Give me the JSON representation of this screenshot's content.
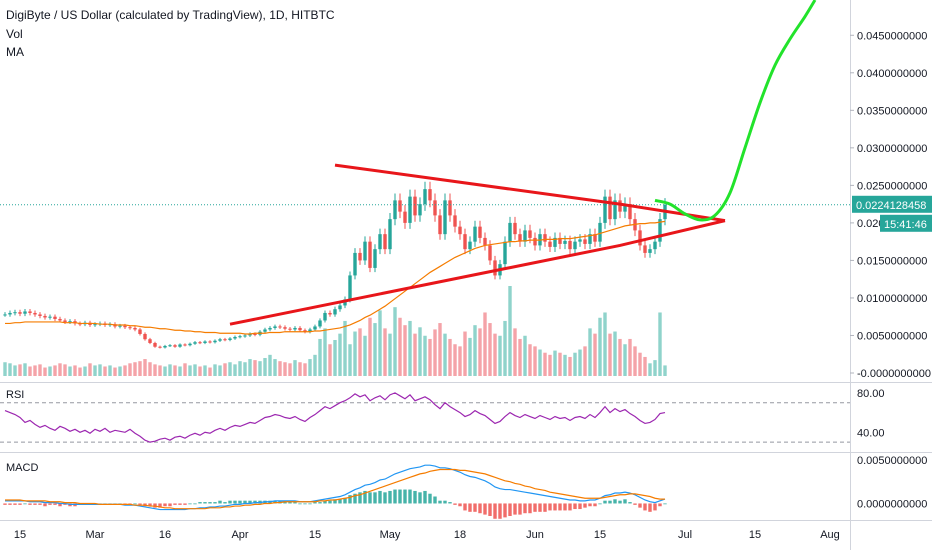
{
  "legend": {
    "title": "DigiByte / US Dollar (calculated by TradingView), 1D, HITBTC",
    "vol": "Vol",
    "ma": "MA"
  },
  "colors": {
    "up": "#26a69a",
    "down": "#ef5350",
    "vol_up": "#8fd3cb",
    "vol_down": "#f4a3a8",
    "ma": "#f57c00",
    "triangle": "#e8161a",
    "projection": "#22e32b",
    "rsi": "#9c27b0",
    "macd": "#2196f3",
    "signal": "#f57c00",
    "price_tag": "#26a69a"
  },
  "price_tag": {
    "value": "0.0224128458",
    "countdown": "15:41:46"
  },
  "chart_data": [
    {
      "type": "candlestick",
      "pane": "price",
      "title": "DigiByte / US Dollar (calculated by TradingView), 1D, HITBTC",
      "x_ticks": [
        "15",
        "Mar",
        "16",
        "Apr",
        "15",
        "May",
        "18",
        "Jun",
        "15",
        "Jul",
        "15",
        "Aug"
      ],
      "y_ticks": [
        "0.0450000000",
        "0.0400000000",
        "0.0350000000",
        "0.0300000000",
        "0.0250000000",
        "0.020",
        "0.0150000000",
        "0.0100000000",
        "0.0050000000",
        "-0.0000000000"
      ],
      "ylim": [
        -0.0012,
        0.0497
      ],
      "close": [
        0.0078,
        0.008,
        0.0081,
        0.0079,
        0.0082,
        0.008,
        0.0078,
        0.0076,
        0.0074,
        0.0075,
        0.0072,
        0.007,
        0.0068,
        0.0069,
        0.0066,
        0.0065,
        0.0067,
        0.0064,
        0.0065,
        0.0066,
        0.0064,
        0.0065,
        0.0062,
        0.0063,
        0.0061,
        0.006,
        0.0058,
        0.0052,
        0.0045,
        0.004,
        0.0035,
        0.0034,
        0.0036,
        0.0037,
        0.0035,
        0.0038,
        0.0037,
        0.0039,
        0.0041,
        0.004,
        0.0042,
        0.0041,
        0.0043,
        0.0045,
        0.0044,
        0.0046,
        0.0048,
        0.0049,
        0.005,
        0.0052,
        0.0051,
        0.0055,
        0.0058,
        0.006,
        0.0062,
        0.0061,
        0.0059,
        0.0058,
        0.006,
        0.0057,
        0.0055,
        0.0058,
        0.0062,
        0.007,
        0.008,
        0.0078,
        0.0085,
        0.009,
        0.0098,
        0.013,
        0.016,
        0.015,
        0.0175,
        0.014,
        0.0165,
        0.0185,
        0.0165,
        0.0205,
        0.023,
        0.0215,
        0.02,
        0.0235,
        0.021,
        0.0225,
        0.0245,
        0.023,
        0.021,
        0.0185,
        0.023,
        0.021,
        0.0195,
        0.0185,
        0.0165,
        0.0175,
        0.0195,
        0.018,
        0.017,
        0.015,
        0.013,
        0.0145,
        0.0175,
        0.02,
        0.0185,
        0.0175,
        0.019,
        0.018,
        0.017,
        0.0185,
        0.0175,
        0.0168,
        0.018,
        0.0172,
        0.0176,
        0.0165,
        0.0175,
        0.0178,
        0.0172,
        0.0185,
        0.0175,
        0.02,
        0.0235,
        0.0205,
        0.023,
        0.0215,
        0.0225,
        0.0205,
        0.019,
        0.017,
        0.016,
        0.0165,
        0.0175,
        0.0205,
        0.0224
      ],
      "ma": [
        0.0066,
        0.0066,
        0.0067,
        0.0067,
        0.0068,
        0.0068,
        0.0068,
        0.0068,
        0.0068,
        0.0068,
        0.0068,
        0.0068,
        0.0067,
        0.0067,
        0.0067,
        0.0066,
        0.0066,
        0.0066,
        0.0066,
        0.0065,
        0.0065,
        0.0065,
        0.0064,
        0.0064,
        0.0064,
        0.0063,
        0.0063,
        0.0062,
        0.0061,
        0.0061,
        0.006,
        0.0059,
        0.0059,
        0.0058,
        0.0057,
        0.0057,
        0.0056,
        0.0056,
        0.0055,
        0.0055,
        0.0054,
        0.0054,
        0.0054,
        0.0053,
        0.0053,
        0.0053,
        0.0053,
        0.0053,
        0.0052,
        0.0052,
        0.0053,
        0.0053,
        0.0053,
        0.0054,
        0.0054,
        0.0054,
        0.0055,
        0.0055,
        0.0055,
        0.0055,
        0.0055,
        0.0055,
        0.0056,
        0.0056,
        0.0057,
        0.0058,
        0.0059,
        0.006,
        0.0062,
        0.0064,
        0.0067,
        0.007,
        0.0074,
        0.0077,
        0.0081,
        0.0085,
        0.0089,
        0.0094,
        0.0099,
        0.0104,
        0.0109,
        0.0114,
        0.0119,
        0.0124,
        0.0129,
        0.0134,
        0.0138,
        0.0142,
        0.0146,
        0.015,
        0.0154,
        0.0157,
        0.016,
        0.0163,
        0.0166,
        0.0168,
        0.017,
        0.0171,
        0.0172,
        0.0173,
        0.0174,
        0.0175,
        0.0175,
        0.0176,
        0.0176,
        0.0177,
        0.0177,
        0.0177,
        0.0178,
        0.0178,
        0.0178,
        0.0179,
        0.0179,
        0.0179,
        0.018,
        0.0181,
        0.0182,
        0.0183,
        0.0184,
        0.0186,
        0.0188,
        0.019,
        0.0192,
        0.0194,
        0.0196,
        0.0197,
        0.0198,
        0.0199,
        0.0199,
        0.02,
        0.02,
        0.0201,
        0.0202
      ],
      "volume": [
        0.0013,
        0.0012,
        0.001,
        0.0011,
        0.0012,
        0.0009,
        0.001,
        0.0011,
        0.0008,
        0.0009,
        0.001,
        0.0012,
        0.0011,
        0.0009,
        0.001,
        0.0008,
        0.0009,
        0.0012,
        0.001,
        0.0011,
        0.0009,
        0.001,
        0.0008,
        0.0009,
        0.001,
        0.0012,
        0.0013,
        0.0014,
        0.0016,
        0.0013,
        0.0011,
        0.001,
        0.0009,
        0.0011,
        0.001,
        0.0009,
        0.0012,
        0.001,
        0.0011,
        0.0009,
        0.001,
        0.0008,
        0.0011,
        0.001,
        0.0012,
        0.0013,
        0.0011,
        0.0014,
        0.0013,
        0.0016,
        0.0015,
        0.0014,
        0.0017,
        0.002,
        0.0016,
        0.0014,
        0.0013,
        0.0012,
        0.0015,
        0.0013,
        0.0012,
        0.0016,
        0.002,
        0.0035,
        0.0045,
        0.003,
        0.0034,
        0.004,
        0.0052,
        0.003,
        0.0042,
        0.0045,
        0.0038,
        0.0055,
        0.005,
        0.0062,
        0.0045,
        0.004,
        0.0065,
        0.0055,
        0.0048,
        0.0052,
        0.004,
        0.0046,
        0.0038,
        0.0035,
        0.0044,
        0.005,
        0.004,
        0.0035,
        0.003,
        0.0028,
        0.0042,
        0.0036,
        0.0048,
        0.0045,
        0.006,
        0.005,
        0.004,
        0.0038,
        0.0052,
        0.0085,
        0.0045,
        0.0035,
        0.0038,
        0.003,
        0.0028,
        0.0025,
        0.0022,
        0.002,
        0.0024,
        0.0022,
        0.002,
        0.0018,
        0.0022,
        0.0025,
        0.0028,
        0.0045,
        0.004,
        0.0055,
        0.006,
        0.004,
        0.0042,
        0.0035,
        0.003,
        0.0035,
        0.0028,
        0.0022,
        0.0018,
        0.0012,
        0.0015,
        0.006,
        0.001
      ],
      "triangle": {
        "upper": [
          [
            66,
            0.0277
          ],
          [
            123,
            0.0225
          ],
          [
            144,
            0.0203
          ]
        ],
        "lower": [
          [
            45,
            0.0065
          ],
          [
            123,
            0.017
          ],
          [
            144,
            0.0203
          ]
        ]
      },
      "projection": [
        [
          130,
          0.023
        ],
        [
          133,
          0.0225
        ],
        [
          136,
          0.0212
        ],
        [
          139,
          0.0204
        ],
        [
          142,
          0.021
        ],
        [
          145,
          0.024
        ],
        [
          148,
          0.03
        ],
        [
          151,
          0.036
        ],
        [
          154,
          0.041
        ],
        [
          157,
          0.0445
        ],
        [
          160,
          0.0475
        ],
        [
          162,
          0.0497
        ]
      ],
      "current_price": 0.0224128458
    },
    {
      "type": "line",
      "pane": "rsi",
      "title": "RSI",
      "y_ticks": [
        "80.00",
        "40.00"
      ],
      "ylim": [
        20,
        90
      ],
      "bands": [
        70,
        30
      ],
      "series": [
        {
          "values": [
            62,
            60,
            58,
            55,
            50,
            52,
            48,
            45,
            47,
            44,
            42,
            46,
            44,
            41,
            43,
            40,
            42,
            39,
            43,
            41,
            44,
            40,
            42,
            41,
            40,
            43,
            39,
            36,
            32,
            30,
            31,
            33,
            34,
            32,
            35,
            36,
            34,
            37,
            39,
            37,
            40,
            39,
            42,
            44,
            42,
            45,
            47,
            46,
            48,
            50,
            49,
            52,
            55,
            56,
            58,
            57,
            55,
            54,
            56,
            53,
            51,
            55,
            58,
            62,
            66,
            64,
            67,
            70,
            72,
            75,
            79,
            76,
            78,
            72,
            75,
            77,
            73,
            78,
            80,
            77,
            74,
            78,
            72,
            74,
            76,
            73,
            68,
            64,
            70,
            66,
            63,
            60,
            56,
            58,
            62,
            59,
            57,
            53,
            49,
            51,
            56,
            60,
            57,
            55,
            58,
            56,
            54,
            57,
            55,
            53,
            56,
            54,
            55,
            52,
            55,
            56,
            54,
            58,
            55,
            60,
            66,
            60,
            64,
            61,
            63,
            59,
            56,
            52,
            49,
            50,
            53,
            59,
            60
          ]
        }
      ]
    },
    {
      "type": "line",
      "pane": "macd",
      "title": "MACD",
      "y_ticks": [
        "0.0050000000",
        "0.0000000000"
      ],
      "ylim": [
        -0.0019,
        0.0058
      ],
      "series": [
        {
          "values": [
            0.0003,
            0.0003,
            0.0003,
            0.0003,
            0.0003,
            0.0002,
            0.0002,
            0.0002,
            0.0001,
            0.0001,
            0.0001,
            0.0,
            0.0,
            -0.0001,
            -0.0001,
            -0.0001,
            -0.0001,
            -0.0001,
            -0.0001,
            -0.0001,
            -0.0001,
            -0.0001,
            -0.0001,
            -0.0001,
            -0.0002,
            -0.0002,
            -0.0002,
            -0.0003,
            -0.0004,
            -0.0005,
            -0.0006,
            -0.0007,
            -0.0007,
            -0.0007,
            -0.0007,
            -0.0007,
            -0.0007,
            -0.0006,
            -0.0006,
            -0.0005,
            -0.0005,
            -0.0004,
            -0.0004,
            -0.0003,
            -0.0003,
            -0.0002,
            -0.0001,
            -0.0001,
            0.0,
            0.0,
            0.0001,
            0.0001,
            0.0002,
            0.0002,
            0.0003,
            0.0003,
            0.0003,
            0.0003,
            0.0003,
            0.0002,
            0.0002,
            0.0002,
            0.0003,
            0.0004,
            0.0005,
            0.0006,
            0.0007,
            0.0008,
            0.001,
            0.0013,
            0.0016,
            0.0018,
            0.0021,
            0.0022,
            0.0024,
            0.0027,
            0.0028,
            0.0031,
            0.0034,
            0.0036,
            0.0038,
            0.004,
            0.0041,
            0.0042,
            0.0044,
            0.0044,
            0.0043,
            0.0041,
            0.0041,
            0.004,
            0.0038,
            0.0036,
            0.0033,
            0.0031,
            0.003,
            0.0028,
            0.0026,
            0.0023,
            0.0019,
            0.0017,
            0.0016,
            0.0016,
            0.0015,
            0.0014,
            0.0013,
            0.0012,
            0.0011,
            0.001,
            0.0009,
            0.0008,
            0.0007,
            0.0006,
            0.0005,
            0.0004,
            0.0004,
            0.0003,
            0.0003,
            0.0004,
            0.0004,
            0.0006,
            0.0009,
            0.001,
            0.0012,
            0.0012,
            0.0013,
            0.0012,
            0.001,
            0.0007,
            0.0004,
            0.0002,
            0.0001,
            0.0003,
            0.0005
          ]
        },
        {
          "values": [
            0.0004,
            0.0004,
            0.0004,
            0.0004,
            0.0003,
            0.0003,
            0.0003,
            0.0003,
            0.0003,
            0.0002,
            0.0002,
            0.0002,
            0.0001,
            0.0001,
            0.0001,
            0.0,
            0.0,
            0.0,
            -0.0,
            -0.0001,
            -0.0001,
            -0.0001,
            -0.0001,
            -0.0001,
            -0.0001,
            -0.0001,
            -0.0002,
            -0.0002,
            -0.0002,
            -0.0003,
            -0.0003,
            -0.0004,
            -0.0005,
            -0.0005,
            -0.0006,
            -0.0006,
            -0.0006,
            -0.0006,
            -0.0006,
            -0.0006,
            -0.0006,
            -0.0005,
            -0.0005,
            -0.0005,
            -0.0004,
            -0.0004,
            -0.0003,
            -0.0003,
            -0.0002,
            -0.0002,
            -0.0001,
            -0.0001,
            0.0,
            0.0,
            0.0001,
            0.0001,
            0.0002,
            0.0002,
            0.0002,
            0.0002,
            0.0002,
            0.0002,
            0.0002,
            0.0003,
            0.0003,
            0.0004,
            0.0004,
            0.0005,
            0.0006,
            0.0007,
            0.0009,
            0.001,
            0.0012,
            0.0014,
            0.0016,
            0.0018,
            0.002,
            0.0022,
            0.0024,
            0.0026,
            0.0028,
            0.003,
            0.0032,
            0.0034,
            0.0035,
            0.0037,
            0.0038,
            0.0039,
            0.0039,
            0.0039,
            0.0039,
            0.0038,
            0.0038,
            0.0037,
            0.0036,
            0.0035,
            0.0034,
            0.0032,
            0.003,
            0.0028,
            0.0026,
            0.0025,
            0.0023,
            0.0022,
            0.002,
            0.0019,
            0.0017,
            0.0016,
            0.0015,
            0.0013,
            0.0012,
            0.0011,
            0.001,
            0.0009,
            0.0008,
            0.0007,
            0.0006,
            0.0006,
            0.0006,
            0.0006,
            0.0007,
            0.0008,
            0.0009,
            0.001,
            0.001,
            0.0011,
            0.0011,
            0.001,
            0.0009,
            0.0008,
            0.0006,
            0.0005,
            0.0005
          ]
        }
      ]
    }
  ]
}
